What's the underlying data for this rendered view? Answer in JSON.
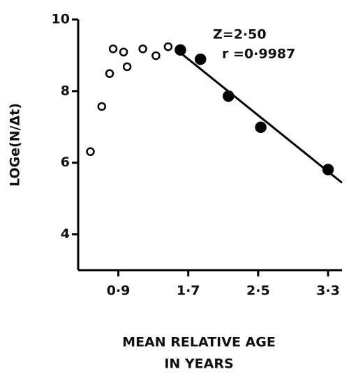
{
  "chart_data": {
    "type": "scatter",
    "ylabel": "LOGe(N/Δt)",
    "xlabel": [
      "MEAN RELATIVE AGE",
      "IN YEARS"
    ],
    "annotations": [
      "Z=2·50",
      "r =0·9987"
    ],
    "xlim": [
      0.44,
      3.46
    ],
    "ylim": [
      3,
      10
    ],
    "xticks": [
      {
        "value": 0.9,
        "label": "0·9"
      },
      {
        "value": 1.7,
        "label": "1·7"
      },
      {
        "value": 2.5,
        "label": "2·5"
      },
      {
        "value": 3.3,
        "label": "3·3"
      }
    ],
    "yticks": [
      4,
      6,
      8,
      10
    ],
    "grid": false,
    "series": [
      {
        "color": "#000000",
        "marker": "open",
        "x": [
          0.58,
          0.71,
          0.8,
          0.84,
          0.96,
          1.0,
          1.18,
          1.33,
          1.47
        ],
        "values": [
          6.31,
          7.57,
          8.49,
          9.18,
          9.09,
          8.68,
          9.18,
          8.99,
          9.24
        ]
      },
      {
        "color": "#000000",
        "marker": "filled",
        "x": [
          1.61,
          1.84,
          2.16,
          2.53,
          3.3
        ],
        "values": [
          9.15,
          8.89,
          7.86,
          6.99,
          5.81
        ]
      }
    ],
    "fit_line": {
      "color": "#000000",
      "x": [
        1.58,
        3.46
      ],
      "values": [
        9.13,
        5.44
      ]
    }
  }
}
